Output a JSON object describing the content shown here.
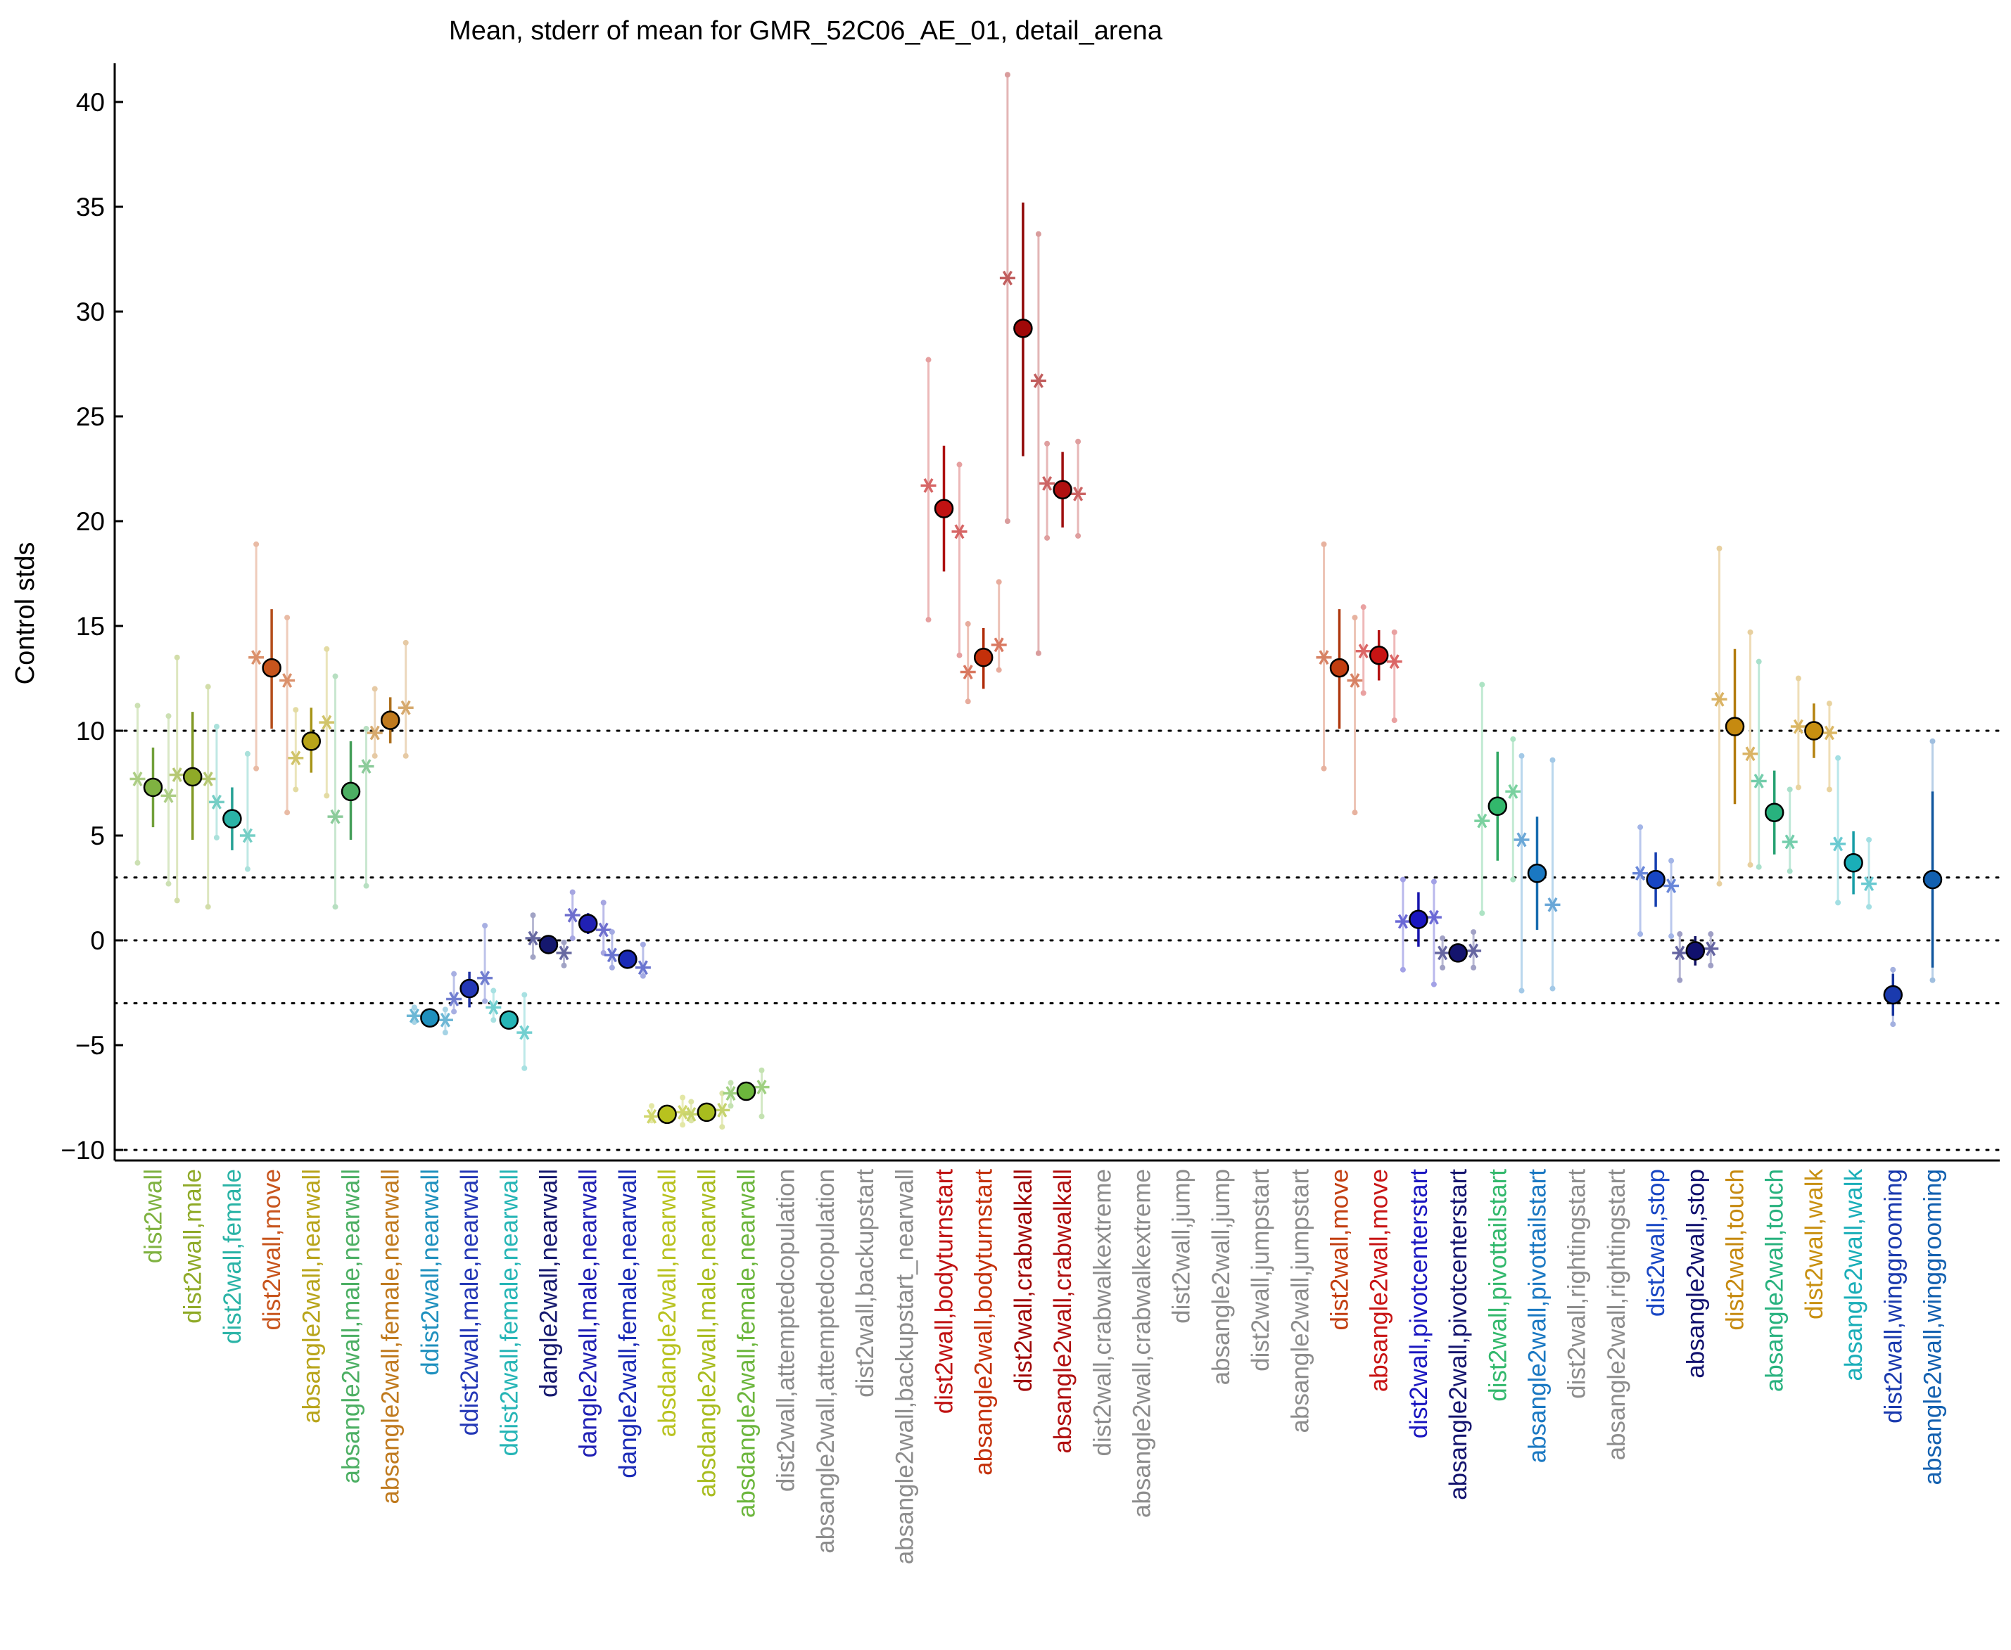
{
  "chart_data": {
    "type": "scatter",
    "title": "Mean, stderr of mean for GMR_52C06_AE_01, detail_arena",
    "xlabel": "",
    "ylabel": "Control stds",
    "ylim": [
      -10.5,
      42
    ],
    "yticks": [
      -10,
      -5,
      0,
      5,
      10,
      15,
      20,
      25,
      30,
      35,
      40
    ],
    "ytick_labels": [
      "−10",
      "−5",
      "0",
      "5",
      "10",
      "15",
      "20",
      "25",
      "30",
      "35",
      "40"
    ],
    "reference_lines": [
      -10,
      -3,
      0,
      3,
      10
    ],
    "grid": false,
    "legend": "none",
    "categories": [
      "dist2wall",
      "dist2wall,male",
      "dist2wall,female",
      "dist2wall,move",
      "absangle2wall,nearwall",
      "absangle2wall,male,nearwall",
      "absangle2wall,female,nearwall",
      "ddist2wall,nearwall",
      "ddist2wall,male,nearwall",
      "ddist2wall,female,nearwall",
      "dangle2wall,nearwall",
      "dangle2wall,male,nearwall",
      "dangle2wall,female,nearwall",
      "absdangle2wall,nearwall",
      "absdangle2wall,male,nearwall",
      "absdangle2wall,female,nearwall",
      "dist2wall,attemptedcopulation",
      "absangle2wall,attemptedcopulation",
      "dist2wall,backupstart",
      "absangle2wall,backupstart_nearwall",
      "dist2wall,bodyturnstart",
      "absangle2wall,bodyturnstart",
      "dist2wall,crabwalkall",
      "absangle2wall,crabwalkall",
      "dist2wall,crabwalkextreme",
      "absangle2wall,crabwalkextreme",
      "dist2wall,jump",
      "absangle2wall,jump",
      "dist2wall,jumpstart",
      "absangle2wall,jumpstart",
      "dist2wall,move",
      "absangle2wall,move",
      "dist2wall,pivotcenterstart",
      "absangle2wall,pivotcenterstart",
      "dist2wall,pivottailstart",
      "absangle2wall,pivottailstart",
      "dist2wall,rightingstart",
      "absangle2wall,rightingstart",
      "dist2wall,stop",
      "absangle2wall,stop",
      "dist2wall,touch",
      "absangle2wall,touch",
      "dist2wall,walk",
      "absangle2wall,walk",
      "dist2wall,winggrooming",
      "absangle2wall,winggrooming"
    ],
    "series": [
      {
        "values": [
          7.3,
          7.8,
          5.8,
          13.0,
          9.5,
          7.1,
          10.5,
          -3.7,
          -2.3,
          -3.8,
          -0.2,
          0.8,
          -0.9,
          -8.3,
          -8.2,
          -7.2,
          null,
          null,
          null,
          null,
          20.6,
          13.5,
          29.2,
          21.5,
          null,
          null,
          null,
          null,
          null,
          null,
          13.0,
          13.6,
          1.0,
          -0.6,
          6.4,
          3.2,
          null,
          null,
          2.9,
          -0.5,
          10.2,
          6.1,
          10.0,
          3.7,
          -2.6,
          2.9
        ],
        "err_low": [
          5.4,
          4.8,
          4.3,
          10.1,
          8.0,
          4.8,
          9.4,
          -4.0,
          -3.2,
          -4.0,
          -0.5,
          0.3,
          -1.2,
          -8.5,
          -8.4,
          -7.5,
          null,
          null,
          null,
          null,
          17.6,
          12.0,
          23.1,
          19.7,
          null,
          null,
          null,
          null,
          null,
          null,
          10.1,
          12.4,
          -0.3,
          -0.9,
          3.8,
          0.5,
          null,
          null,
          1.6,
          -1.2,
          6.5,
          4.1,
          8.7,
          2.2,
          -3.6,
          -1.3
        ],
        "err_high": [
          9.2,
          10.9,
          7.3,
          15.8,
          11.1,
          9.5,
          11.6,
          -3.4,
          -1.5,
          -3.6,
          0.1,
          1.3,
          -0.6,
          -8.1,
          -8.0,
          -6.9,
          null,
          null,
          null,
          null,
          23.6,
          14.9,
          35.2,
          23.3,
          null,
          null,
          null,
          null,
          null,
          null,
          15.8,
          14.8,
          2.3,
          -0.3,
          9.0,
          5.9,
          null,
          null,
          4.2,
          0.2,
          13.9,
          8.1,
          11.3,
          5.2,
          -1.6,
          7.1
        ],
        "male": [
          7.7,
          7.9,
          6.6,
          13.5,
          8.7,
          5.9,
          9.9,
          -3.6,
          -2.8,
          -3.2,
          0.1,
          1.2,
          -0.7,
          -8.4,
          -8.3,
          -7.3,
          null,
          null,
          null,
          null,
          21.7,
          12.8,
          31.6,
          21.8,
          null,
          null,
          null,
          null,
          null,
          null,
          13.5,
          13.8,
          0.9,
          -0.6,
          5.7,
          4.8,
          null,
          null,
          3.2,
          -0.6,
          11.5,
          7.6,
          10.2,
          4.6,
          null,
          null
        ],
        "female": [
          6.9,
          7.7,
          5.0,
          12.4,
          10.4,
          8.3,
          11.1,
          -3.8,
          -1.8,
          -4.4,
          -0.6,
          0.5,
          -1.3,
          -8.2,
          -8.1,
          -7.0,
          null,
          null,
          null,
          null,
          19.5,
          14.1,
          26.7,
          21.3,
          null,
          null,
          null,
          null,
          null,
          null,
          12.4,
          13.3,
          1.1,
          -0.5,
          7.1,
          1.7,
          null,
          null,
          2.6,
          -0.4,
          8.9,
          4.7,
          9.9,
          2.7,
          null,
          null
        ],
        "male_range": [
          [
            3.7,
            11.2
          ],
          [
            1.9,
            13.5
          ],
          [
            4.9,
            10.2
          ],
          [
            8.2,
            18.9
          ],
          [
            7.2,
            11.0
          ],
          [
            1.6,
            12.6
          ],
          [
            8.8,
            12.0
          ],
          [
            -3.9,
            -3.2
          ],
          [
            -3.4,
            -1.6
          ],
          [
            -3.8,
            -2.4
          ],
          [
            -0.8,
            1.2
          ],
          [
            0.1,
            2.3
          ],
          [
            -1.3,
            0.4
          ],
          [
            -8.6,
            -7.9
          ],
          [
            -8.6,
            -7.7
          ],
          [
            -7.9,
            -6.8
          ],
          null,
          null,
          null,
          null,
          [
            15.3,
            27.7
          ],
          [
            11.4,
            15.1
          ],
          [
            20.0,
            41.3
          ],
          [
            19.2,
            23.7
          ],
          null,
          null,
          null,
          null,
          null,
          null,
          [
            8.2,
            18.9
          ],
          [
            11.8,
            15.9
          ],
          [
            -1.4,
            2.9
          ],
          [
            -1.3,
            0.1
          ],
          [
            1.3,
            12.2
          ],
          [
            -2.4,
            8.8
          ],
          null,
          null,
          [
            0.3,
            5.4
          ],
          [
            -1.9,
            0.3
          ],
          [
            2.7,
            18.7
          ],
          [
            3.5,
            13.3
          ],
          [
            7.3,
            12.5
          ],
          [
            1.8,
            8.7
          ],
          [
            -4.0,
            -1.4
          ],
          [
            -1.9,
            9.5
          ]
        ],
        "female_range": [
          [
            2.7,
            10.7
          ],
          [
            1.6,
            12.1
          ],
          [
            3.4,
            8.9
          ],
          [
            6.1,
            15.4
          ],
          [
            6.9,
            13.9
          ],
          [
            2.6,
            10.1
          ],
          [
            8.8,
            14.2
          ],
          [
            -4.4,
            -3.3
          ],
          [
            -2.9,
            0.7
          ],
          [
            -6.1,
            -2.6
          ],
          [
            -1.2,
            -0.1
          ],
          [
            -0.6,
            1.8
          ],
          [
            -1.7,
            -0.2
          ],
          [
            -8.8,
            -7.5
          ],
          [
            -8.9,
            -7.3
          ],
          [
            -8.4,
            -6.2
          ],
          null,
          null,
          null,
          null,
          [
            13.6,
            22.7
          ],
          [
            12.9,
            17.1
          ],
          [
            13.7,
            33.7
          ],
          [
            19.3,
            23.8
          ],
          null,
          null,
          null,
          null,
          null,
          null,
          [
            6.1,
            15.4
          ],
          [
            10.5,
            14.7
          ],
          [
            -2.1,
            2.8
          ],
          [
            -1.3,
            0.4
          ],
          [
            2.9,
            9.6
          ],
          [
            -2.3,
            8.6
          ],
          null,
          null,
          [
            0.2,
            3.8
          ],
          [
            -1.2,
            0.3
          ],
          [
            3.6,
            14.7
          ],
          [
            3.3,
            7.2
          ],
          [
            7.2,
            11.3
          ],
          [
            1.6,
            4.8
          ],
          null,
          null
        ]
      }
    ],
    "colors": [
      "#7fb241",
      "#8faa28",
      "#2ab3a6",
      "#c8551d",
      "#b8a41a",
      "#4caf63",
      "#c07a1e",
      "#1f90be",
      "#2438b6",
      "#26b5b6",
      "#15186e",
      "#2020b4",
      "#1a2ab6",
      "#b8c21e",
      "#a8bc1e",
      "#6cb63c",
      "#8c8c8c",
      "#8c8c8c",
      "#8c8c8c",
      "#8c8c8c",
      "#c01212",
      "#c4300a",
      "#a00808",
      "#b01010",
      "#8c8c8c",
      "#8c8c8c",
      "#8c8c8c",
      "#8c8c8c",
      "#8c8c8c",
      "#8c8c8c",
      "#c23e10",
      "#c81414",
      "#1a16c0",
      "#14146e",
      "#32b86c",
      "#1a78c2",
      "#8c8c8c",
      "#8c8c8c",
      "#1846c4",
      "#10106e",
      "#c68a10",
      "#28b27e",
      "#c89010",
      "#1aaeb8",
      "#1a3aae",
      "#1260b0"
    ]
  }
}
